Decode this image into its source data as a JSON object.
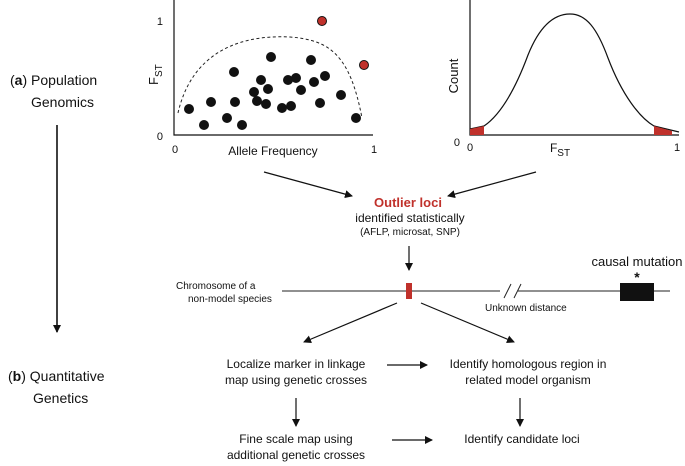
{
  "section_a": {
    "label": "a",
    "line1": "Population",
    "line2": "Genomics"
  },
  "section_b": {
    "label": "b",
    "line1": "Quantitative",
    "line2": "Genetics"
  },
  "scatter": {
    "ylabel_main": "F",
    "ylabel_sub": "ST",
    "xlabel": "Allele Frequency",
    "x_tick_0": "0",
    "x_tick_1": "1",
    "y_tick_0": "0",
    "y_tick_1": "1",
    "point_color": "#111111",
    "outlier_color": "#c0312b"
  },
  "histogram": {
    "ylabel": "Count",
    "xlabel_main": "F",
    "xlabel_sub": "ST",
    "x_tick_0": "0",
    "x_tick_1": "1",
    "y_tick_0": "0",
    "tail_color": "#c0312b"
  },
  "outlier": {
    "title": "Outlier loci",
    "line2": "identified statistically",
    "line3": "(AFLP, microsat, SNP)",
    "title_color": "#c0312b"
  },
  "chromosome": {
    "label_line1": "Chromosome of a",
    "label_line2": "non-model species",
    "unknown_distance": "Unknown distance",
    "causal_mutation": "causal mutation",
    "asterisk": "*",
    "marker_color": "#c0312b"
  },
  "steps": {
    "localize_1": "Localize marker in linkage",
    "localize_2": "map using genetic crosses",
    "homolog_1": "Identify homologous region in",
    "homolog_2": "related model organism",
    "fine_1": "Fine scale map using",
    "fine_2": "additional genetic crosses",
    "candidate": "Identify candidate loci"
  }
}
